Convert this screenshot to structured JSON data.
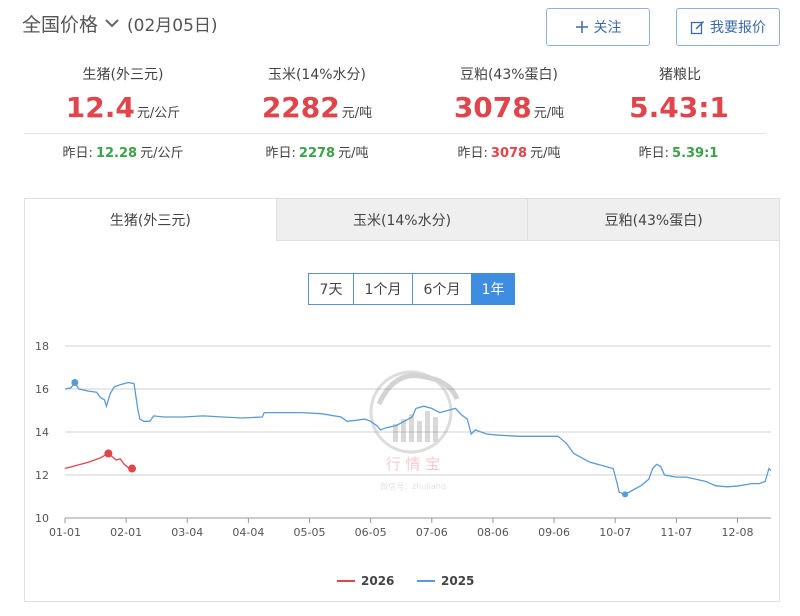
{
  "header": {
    "title": "全国价格",
    "date": "(02月05日)"
  },
  "buttons": {
    "follow": "关注",
    "quote": "我要报价"
  },
  "metrics": [
    {
      "label": "生猪(外三元)",
      "value": "12.4",
      "unit": "元/公斤",
      "yesterday_label": "昨日:",
      "yesterday_value": "12.28",
      "yesterday_unit": "元/公斤",
      "trend": "green"
    },
    {
      "label": "玉米(14%水分)",
      "value": "2282",
      "unit": "元/吨",
      "yesterday_label": "昨日:",
      "yesterday_value": "2278",
      "yesterday_unit": "元/吨",
      "trend": "green"
    },
    {
      "label": "豆粕(43%蛋白)",
      "value": "3078",
      "unit": "元/吨",
      "yesterday_label": "昨日:",
      "yesterday_value": "3078",
      "yesterday_unit": "元/吨",
      "trend": "red"
    },
    {
      "label": "猪粮比",
      "value": "5.43:1",
      "unit": "",
      "yesterday_label": "昨日:",
      "yesterday_value": "5.39:1",
      "yesterday_unit": "",
      "trend": "green"
    }
  ],
  "tabs": [
    "生猪(外三元)",
    "玉米(14%水分)",
    "豆粕(43%蛋白)"
  ],
  "ranges": [
    "7天",
    "1个月",
    "6个月",
    "1年"
  ],
  "watermark": {
    "name": "行 情 宝",
    "sub": "微信号：zhujiahq"
  },
  "colors": {
    "series_2026": "#e0454b",
    "series_2025": "#5b9bd5",
    "accent": "#3f8de0"
  },
  "chart_data": {
    "type": "line",
    "title": "",
    "xlabel": "",
    "ylabel": "",
    "ylim": [
      10,
      18
    ],
    "yticks": [
      10,
      12,
      14,
      16,
      18
    ],
    "x_ticks": [
      "01-01",
      "02-01",
      "03-04",
      "04-04",
      "05-05",
      "06-05",
      "07-06",
      "08-06",
      "09-06",
      "10-07",
      "11-07",
      "12-08"
    ],
    "x_tick_days": [
      0,
      31,
      62,
      93,
      124,
      155,
      186,
      217,
      248,
      279,
      310,
      341
    ],
    "x_range_days": [
      0,
      358
    ],
    "grid": "horizontal",
    "legend": "bottom-center",
    "series": [
      {
        "name": "2026",
        "points": [
          [
            0,
            12.3
          ],
          [
            4,
            12.4
          ],
          [
            8,
            12.5
          ],
          [
            12,
            12.6
          ],
          [
            15,
            12.7
          ],
          [
            18,
            12.8
          ],
          [
            20,
            12.9
          ],
          [
            22,
            13.0
          ],
          [
            24,
            12.85
          ],
          [
            26,
            12.7
          ],
          [
            28,
            12.75
          ],
          [
            30,
            12.5
          ],
          [
            32,
            12.35
          ],
          [
            34,
            12.3
          ]
        ]
      },
      {
        "name": "2025",
        "points": [
          [
            0,
            16.0
          ],
          [
            3,
            16.05
          ],
          [
            5,
            16.3
          ],
          [
            7,
            16.0
          ],
          [
            12,
            15.9
          ],
          [
            16,
            15.85
          ],
          [
            18,
            15.6
          ],
          [
            20,
            15.5
          ],
          [
            21,
            15.2
          ],
          [
            23,
            15.8
          ],
          [
            25,
            16.1
          ],
          [
            28,
            16.2
          ],
          [
            32,
            16.3
          ],
          [
            35,
            16.25
          ],
          [
            37,
            15.0
          ],
          [
            38,
            14.6
          ],
          [
            40,
            14.5
          ],
          [
            43,
            14.5
          ],
          [
            45,
            14.75
          ],
          [
            50,
            14.7
          ],
          [
            60,
            14.7
          ],
          [
            70,
            14.75
          ],
          [
            80,
            14.7
          ],
          [
            90,
            14.65
          ],
          [
            100,
            14.7
          ],
          [
            101,
            14.9
          ],
          [
            110,
            14.9
          ],
          [
            120,
            14.9
          ],
          [
            130,
            14.85
          ],
          [
            140,
            14.7
          ],
          [
            143,
            14.5
          ],
          [
            148,
            14.55
          ],
          [
            152,
            14.6
          ],
          [
            155,
            14.5
          ],
          [
            158,
            14.3
          ],
          [
            160,
            14.1
          ],
          [
            163,
            14.2
          ],
          [
            168,
            14.3
          ],
          [
            172,
            14.5
          ],
          [
            176,
            14.7
          ],
          [
            178,
            15.1
          ],
          [
            182,
            15.2
          ],
          [
            186,
            15.1
          ],
          [
            190,
            14.9
          ],
          [
            194,
            15.0
          ],
          [
            198,
            15.1
          ],
          [
            201,
            14.8
          ],
          [
            204,
            14.6
          ],
          [
            206,
            13.9
          ],
          [
            208,
            14.1
          ],
          [
            214,
            13.9
          ],
          [
            220,
            13.85
          ],
          [
            230,
            13.8
          ],
          [
            240,
            13.8
          ],
          [
            250,
            13.8
          ],
          [
            254,
            13.5
          ],
          [
            258,
            13.0
          ],
          [
            262,
            12.8
          ],
          [
            266,
            12.6
          ],
          [
            270,
            12.5
          ],
          [
            274,
            12.4
          ],
          [
            278,
            12.3
          ],
          [
            280,
            11.6
          ],
          [
            281,
            11.2
          ],
          [
            284,
            11.1
          ],
          [
            288,
            11.3
          ],
          [
            292,
            11.5
          ],
          [
            296,
            11.8
          ],
          [
            298,
            12.3
          ],
          [
            300,
            12.5
          ],
          [
            302,
            12.4
          ],
          [
            304,
            12.0
          ],
          [
            310,
            11.9
          ],
          [
            315,
            11.9
          ],
          [
            320,
            11.8
          ],
          [
            325,
            11.7
          ],
          [
            330,
            11.5
          ],
          [
            336,
            11.45
          ],
          [
            342,
            11.5
          ],
          [
            348,
            11.6
          ],
          [
            352,
            11.6
          ],
          [
            355,
            11.7
          ],
          [
            357,
            12.3
          ],
          [
            358,
            12.2
          ]
        ]
      }
    ]
  }
}
